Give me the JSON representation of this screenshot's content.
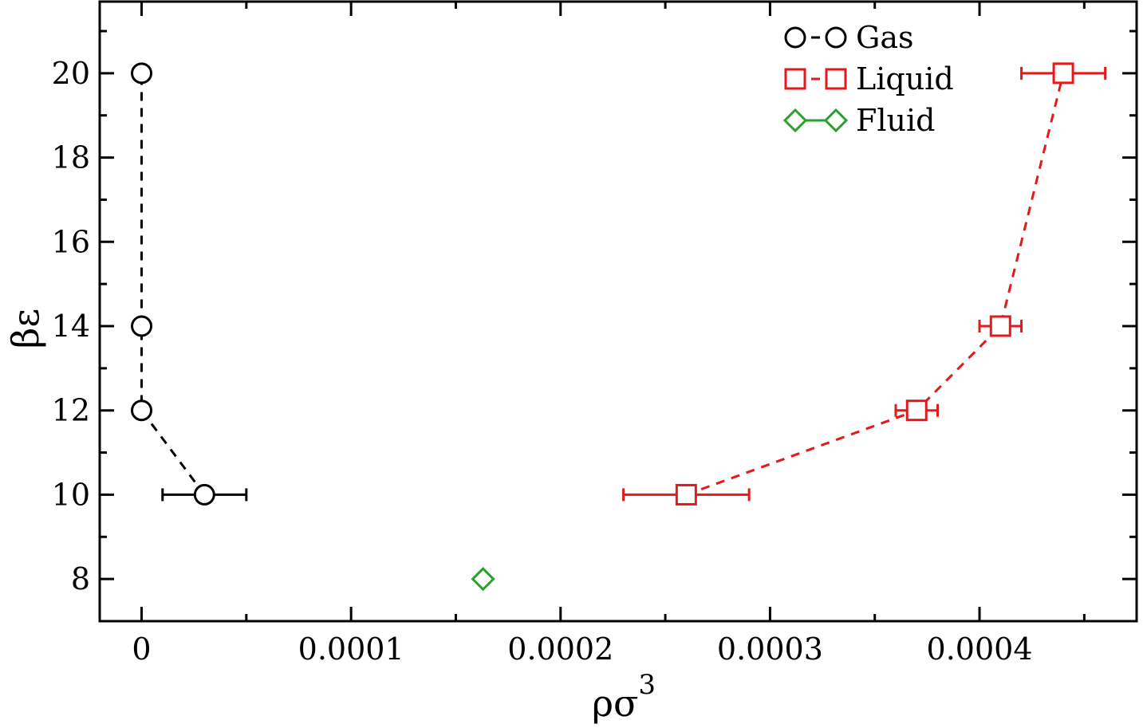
{
  "chart_data": {
    "type": "scatter",
    "xlabel": "ρσ",
    "xlabel_superscript": "3",
    "ylabel": "βε",
    "xlim": [
      -2e-05,
      0.000475
    ],
    "ylim": [
      7,
      21.7
    ],
    "xticks": [
      0,
      0.0001,
      0.0002,
      0.0003,
      0.0004
    ],
    "xtick_labels": [
      "0",
      "0.0001",
      "0.0002",
      "0.0003",
      "0.0004"
    ],
    "xminor": [
      5e-05,
      0.00015,
      0.00025,
      0.00035,
      0.00045
    ],
    "yticks": [
      8,
      10,
      12,
      14,
      16,
      18,
      20
    ],
    "ytick_labels": [
      "8",
      "10",
      "12",
      "14",
      "16",
      "18",
      "20"
    ],
    "yminor": [
      9,
      11,
      13,
      15,
      17,
      19,
      21
    ],
    "grid": false,
    "legend_position": "top-right",
    "series": [
      {
        "name": "Gas",
        "color": "#000000",
        "marker": "circle",
        "line": "dashed",
        "points": [
          {
            "x": 3e-05,
            "y": 10,
            "xerr": 2e-05
          },
          {
            "x": 0.0,
            "y": 12,
            "xerr": 0
          },
          {
            "x": 0.0,
            "y": 14,
            "xerr": 0
          },
          {
            "x": 0.0,
            "y": 20,
            "xerr": 0
          }
        ]
      },
      {
        "name": "Liquid",
        "color": "#e31a1c",
        "marker": "square",
        "line": "dashed",
        "points": [
          {
            "x": 0.00026,
            "y": 10,
            "xerr": 3e-05
          },
          {
            "x": 0.00037,
            "y": 12,
            "xerr": 1e-05
          },
          {
            "x": 0.00041,
            "y": 14,
            "xerr": 1e-05
          },
          {
            "x": 0.00044,
            "y": 20,
            "xerr": 2e-05
          }
        ]
      },
      {
        "name": "Fluid",
        "color": "#2ca02c",
        "marker": "diamond",
        "line": "solid",
        "points": [
          {
            "x": 0.000163,
            "y": 8,
            "xerr": 0
          }
        ]
      }
    ]
  }
}
